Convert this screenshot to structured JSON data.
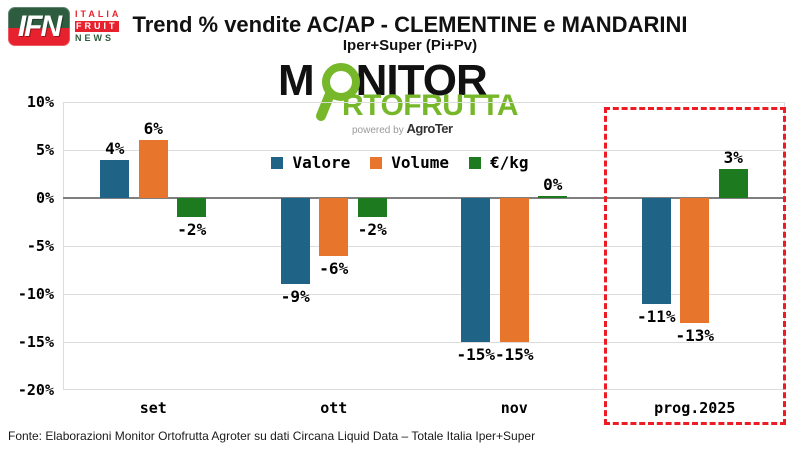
{
  "header": {
    "ifn_logo": {
      "acronym": "IFN",
      "word1": "ITALIA",
      "word2": "FRUIT",
      "word3": "NEWS"
    },
    "title": "Trend % vendite AC/AP - CLEMENTINE e MANDARINI",
    "subtitle": "Iper+Super (Pi+Pv)"
  },
  "monitor_logo": {
    "top_prefix": "M",
    "top_suffix": "NITOR",
    "bottom_word": "RTOFRUTTA",
    "powered_by": "powered by ",
    "brand": "AgroTer",
    "green": "#76b82a"
  },
  "chart_data": {
    "type": "bar",
    "title": "Trend % vendite AC/AP - CLEMENTINE e MANDARINI",
    "subtitle": "Iper+Super (Pi+Pv)",
    "categories": [
      "set",
      "ott",
      "nov",
      "prog.2025"
    ],
    "series": [
      {
        "name": "Valore",
        "color": "#1f6387",
        "values": [
          4,
          -9,
          -15,
          -11
        ]
      },
      {
        "name": "Volume",
        "color": "#e8752c",
        "values": [
          6,
          -6,
          -15,
          -13
        ]
      },
      {
        "name": "€/kg",
        "color": "#1e7a1f",
        "values": [
          -2,
          -2,
          0,
          3
        ]
      }
    ],
    "value_labels": [
      [
        "4%",
        "6%",
        "-2%"
      ],
      [
        "-9%",
        "-6%",
        "-2%"
      ],
      [
        "-15%",
        "-15%",
        "0%"
      ],
      [
        "-11%",
        "-13%",
        "3%"
      ]
    ],
    "ylim": [
      -20,
      10
    ],
    "ytick_step": 5,
    "ytick_labels": [
      "10%",
      "5%",
      "0%",
      "-5%",
      "-10%",
      "-15%",
      "-20%"
    ],
    "grid": true,
    "grid_color": "#dcdcdc",
    "zero_line_color": "#7f7f7f",
    "legend_position": "top-center",
    "highlight": {
      "category": "prog.2025",
      "style": "dashed-box",
      "color": "#ed1c24"
    }
  },
  "footer": {
    "source": "Fonte: Elaborazioni Monitor Ortofrutta Agroter su dati Circana Liquid Data – Totale Italia Iper+Super"
  }
}
